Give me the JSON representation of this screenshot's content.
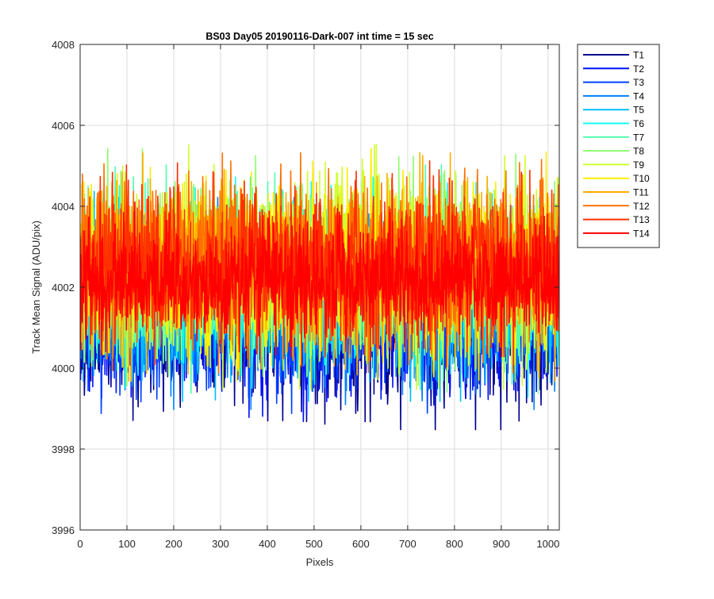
{
  "chart_data": {
    "type": "line",
    "title": "BS03 Day05 20190116-Dark-007 int time = 15 sec",
    "xlabel": "Pixels",
    "ylabel": "Track Mean Signal (ADU/pix)",
    "xlim": [
      0,
      1024
    ],
    "ylim": [
      3996,
      4008
    ],
    "xticks": [
      0,
      100,
      200,
      300,
      400,
      500,
      600,
      700,
      800,
      900,
      1000
    ],
    "yticks": [
      3996,
      3998,
      4000,
      4002,
      4004,
      4006,
      4008
    ],
    "grid": true,
    "legend_position": "outside-right-top",
    "series": [
      {
        "name": "T1",
        "color": "#00008F",
        "mean": 4001.0,
        "amp": 1.25
      },
      {
        "name": "T2",
        "color": "#0010FF",
        "mean": 4001.2,
        "amp": 1.25
      },
      {
        "name": "T3",
        "color": "#0040FF",
        "mean": 4001.4,
        "amp": 1.25
      },
      {
        "name": "T4",
        "color": "#0080FF",
        "mean": 4001.6,
        "amp": 1.3
      },
      {
        "name": "T5",
        "color": "#00BFFF",
        "mean": 4001.8,
        "amp": 1.3
      },
      {
        "name": "T6",
        "color": "#10FFEF",
        "mean": 4002.0,
        "amp": 1.35
      },
      {
        "name": "T7",
        "color": "#50FFAF",
        "mean": 4002.2,
        "amp": 1.4
      },
      {
        "name": "T8",
        "color": "#8FFF70",
        "mean": 4002.4,
        "amp": 1.5
      },
      {
        "name": "T9",
        "color": "#CFFF30",
        "mean": 4002.5,
        "amp": 1.5
      },
      {
        "name": "T10",
        "color": "#FFEF00",
        "mean": 4002.5,
        "amp": 1.45
      },
      {
        "name": "T11",
        "color": "#FFAF00",
        "mean": 4002.5,
        "amp": 1.4
      },
      {
        "name": "T12",
        "color": "#FF7000",
        "mean": 4002.6,
        "amp": 1.35
      },
      {
        "name": "T13",
        "color": "#FF3000",
        "mean": 4002.5,
        "amp": 1.3
      },
      {
        "name": "T14",
        "color": "#FF0000",
        "mean": 4002.2,
        "amp": 0.95
      }
    ]
  }
}
